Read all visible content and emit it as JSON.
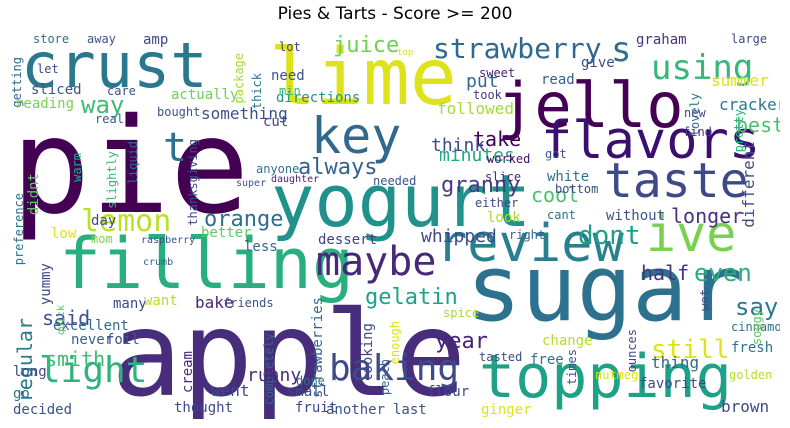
{
  "title": "Pies & Tarts - Score >= 200",
  "colors": {
    "background": "#ffffff",
    "palette": "viridis"
  },
  "words": [
    {
      "text": "pie",
      "color": "#440154"
    },
    {
      "text": "apple",
      "color": "#472d7b"
    },
    {
      "text": "sugar",
      "color": "#2c728e"
    },
    {
      "text": "yogurt",
      "color": "#21918c"
    },
    {
      "text": "crust",
      "color": "#2a788e"
    },
    {
      "text": "lime",
      "color": "#dde318"
    },
    {
      "text": "jello",
      "color": "#440154"
    },
    {
      "text": "filling",
      "color": "#29af7f"
    },
    {
      "text": "topping",
      "color": "#1fa187"
    },
    {
      "text": "review",
      "color": "#27808e"
    },
    {
      "text": "key",
      "color": "#31688e"
    },
    {
      "text": "flavors",
      "color": "#3b0f70"
    },
    {
      "text": "taste",
      "color": "#3e4989"
    },
    {
      "text": "ive",
      "color": "#7ad151"
    },
    {
      "text": "maybe",
      "color": "#482878"
    },
    {
      "text": "baking",
      "color": "#3e4a89"
    },
    {
      "text": "light",
      "color": "#2eb37c"
    },
    {
      "text": "lemon",
      "color": "#bddf26"
    },
    {
      "text": "strawberry",
      "color": "#31688e"
    },
    {
      "text": "s",
      "color": "#2c728e"
    },
    {
      "text": "using",
      "color": "#35b779"
    },
    {
      "text": "t",
      "color": "#2c718e"
    },
    {
      "text": "granny",
      "color": "#433e85"
    },
    {
      "text": "way",
      "color": "#3dbc74"
    },
    {
      "text": "juice",
      "color": "#6ece58"
    },
    {
      "text": "orange",
      "color": "#2e6e8e"
    },
    {
      "text": "dont",
      "color": "#1f9e89"
    },
    {
      "text": "always",
      "color": "#355f8d"
    },
    {
      "text": "gelatin",
      "color": "#1fa088"
    },
    {
      "text": "year",
      "color": "#482475"
    },
    {
      "text": "still",
      "color": "#dde318"
    },
    {
      "text": "even",
      "color": "#29af7f"
    },
    {
      "text": "say",
      "color": "#2a788e"
    },
    {
      "text": "regular",
      "color": "#287c8e"
    },
    {
      "text": "said",
      "color": "#3b528b"
    },
    {
      "text": "smith",
      "color": "#3dbc74"
    },
    {
      "text": "take",
      "color": "#440154"
    },
    {
      "text": "best",
      "color": "#4ac16d"
    },
    {
      "text": "whipped",
      "color": "#3e4989"
    },
    {
      "text": "different",
      "color": "#3e4c8a"
    },
    {
      "text": "longer",
      "color": "#46327e"
    },
    {
      "text": "half",
      "color": "#46337f"
    },
    {
      "text": "cool",
      "color": "#4ac16d"
    },
    {
      "text": "minutes",
      "color": "#21a685"
    },
    {
      "text": "think",
      "color": "#3e4a89"
    },
    {
      "text": "put",
      "color": "#31688e"
    },
    {
      "text": "followed",
      "color": "#a5db36"
    },
    {
      "text": "cracker",
      "color": "#2a788e"
    },
    {
      "text": "summer",
      "color": "#dde318"
    },
    {
      "text": "graham",
      "color": "#46337f"
    },
    {
      "text": "give",
      "color": "#3e4a89"
    },
    {
      "text": "read",
      "color": "#355f8d"
    },
    {
      "text": "took",
      "color": "#433e85"
    },
    {
      "text": "sweet",
      "color": "#481f70"
    },
    {
      "text": "large",
      "color": "#3e4989"
    },
    {
      "text": "pretty",
      "color": "#29af7f"
    },
    {
      "text": "lovely",
      "color": "#2a788e"
    },
    {
      "text": "new",
      "color": "#3e4989"
    },
    {
      "text": "find",
      "color": "#46337f"
    },
    {
      "text": "something",
      "color": "#3b528b"
    },
    {
      "text": "actually",
      "color": "#6ece58"
    },
    {
      "text": "cut",
      "color": "#3e4989"
    },
    {
      "text": "directions",
      "color": "#21918c"
    },
    {
      "text": "need",
      "color": "#3b528b"
    },
    {
      "text": "min",
      "color": "#35b779"
    },
    {
      "text": "lot",
      "color": "#433e85"
    },
    {
      "text": "package",
      "color": "#a5db36"
    },
    {
      "text": "thick",
      "color": "#2a788e"
    },
    {
      "text": "amp",
      "color": "#3e4a89"
    },
    {
      "text": "away",
      "color": "#3b528b"
    },
    {
      "text": "store",
      "color": "#2c728e"
    },
    {
      "text": "let",
      "color": "#3e4989"
    },
    {
      "text": "getting",
      "color": "#31688e"
    },
    {
      "text": "sliced",
      "color": "#3b528b"
    },
    {
      "text": "care",
      "color": "#3e4a89"
    },
    {
      "text": "reading",
      "color": "#7ad151"
    },
    {
      "text": "real",
      "color": "#355f8d"
    },
    {
      "text": "bought",
      "color": "#3b528b"
    },
    {
      "text": "preference",
      "color": "#2c728e"
    },
    {
      "text": "didnt",
      "color": "#5ec962"
    },
    {
      "text": "warm",
      "color": "#22a884"
    },
    {
      "text": "slightly",
      "color": "#35b779"
    },
    {
      "text": "liquid",
      "color": "#31688e"
    },
    {
      "text": "thanksgiving",
      "color": "#3e4c8a"
    },
    {
      "text": "anyone",
      "color": "#2c728e"
    },
    {
      "text": "super",
      "color": "#3b528b"
    },
    {
      "text": "daughter",
      "color": "#481f70"
    },
    {
      "text": "needed",
      "color": "#3b528b"
    },
    {
      "text": "either",
      "color": "#3e4989"
    },
    {
      "text": "worked",
      "color": "#471164"
    },
    {
      "text": "got",
      "color": "#3b528b"
    },
    {
      "text": "white",
      "color": "#2c728e"
    },
    {
      "text": "bottom",
      "color": "#3e4a89"
    },
    {
      "text": "slice",
      "color": "#482878"
    },
    {
      "text": "look",
      "color": "#a5db36"
    },
    {
      "text": "cant",
      "color": "#2c728e"
    },
    {
      "text": "without",
      "color": "#3b528b"
    },
    {
      "text": "right",
      "color": "#355f8d"
    },
    {
      "text": "day",
      "color": "#3e4a89"
    },
    {
      "text": "low",
      "color": "#dde318"
    },
    {
      "text": "mom",
      "color": "#7ad151"
    },
    {
      "text": "raspberry",
      "color": "#3b528b"
    },
    {
      "text": "better",
      "color": "#5ec962"
    },
    {
      "text": "dessert",
      "color": "#433e85"
    },
    {
      "text": "less",
      "color": "#31688e"
    },
    {
      "text": "yummy",
      "color": "#3e4989"
    },
    {
      "text": "quick",
      "color": "#5ec962"
    },
    {
      "text": "crumb",
      "color": "#355f8d"
    },
    {
      "text": "many",
      "color": "#3e4989"
    },
    {
      "text": "want",
      "color": "#b5de2b"
    },
    {
      "text": "bake",
      "color": "#482878"
    },
    {
      "text": "friends",
      "color": "#3b528b"
    },
    {
      "text": "excellent",
      "color": "#31688e"
    },
    {
      "text": "never",
      "color": "#355f8d"
    },
    {
      "text": "foil",
      "color": "#3b528b"
    },
    {
      "text": "long",
      "color": "#3e4989"
    },
    {
      "text": "go",
      "color": "#2c728e"
    },
    {
      "text": "decided",
      "color": "#3b528b"
    },
    {
      "text": "thought",
      "color": "#3e4989"
    },
    {
      "text": "cream",
      "color": "#482878"
    },
    {
      "text": "went",
      "color": "#3e4a89"
    },
    {
      "text": "completely",
      "color": "#31688e"
    },
    {
      "text": "runny",
      "color": "#472d7b"
    },
    {
      "text": "small",
      "color": "#3e4a89"
    },
    {
      "text": "done",
      "color": "#2c728e"
    },
    {
      "text": "fruit",
      "color": "#3e4989"
    },
    {
      "text": "another",
      "color": "#3b528b"
    },
    {
      "text": "strawberries",
      "color": "#31688e"
    },
    {
      "text": "looking",
      "color": "#3e4a89"
    },
    {
      "text": "peach",
      "color": "#355f8d"
    },
    {
      "text": "enough",
      "color": "#dde318"
    },
    {
      "text": "spice",
      "color": "#a5db36"
    },
    {
      "text": "flour",
      "color": "#3e4989"
    },
    {
      "text": "last",
      "color": "#3b528b"
    },
    {
      "text": "tasted",
      "color": "#3e4a89"
    },
    {
      "text": "free",
      "color": "#2c728e"
    },
    {
      "text": "change",
      "color": "#b5de2b"
    },
    {
      "text": "nutmeg",
      "color": "#dde318"
    },
    {
      "text": "times",
      "color": "#3b528b"
    },
    {
      "text": "ounces",
      "color": "#3e4989"
    },
    {
      "text": "ginger",
      "color": "#dde318"
    },
    {
      "text": "favorite",
      "color": "#3e4a89"
    },
    {
      "text": "thing",
      "color": "#31688e"
    },
    {
      "text": "fresh",
      "color": "#2c728e"
    },
    {
      "text": "brown",
      "color": "#3e4989"
    },
    {
      "text": "cinnamon",
      "color": "#2c728e"
    },
    {
      "text": "wet",
      "color": "#3e4a89"
    },
    {
      "text": "soggy",
      "color": "#5ec962"
    },
    {
      "text": "golden",
      "color": "#b5de2b"
    },
    {
      "text": "top",
      "color": "#dde318"
    }
  ]
}
